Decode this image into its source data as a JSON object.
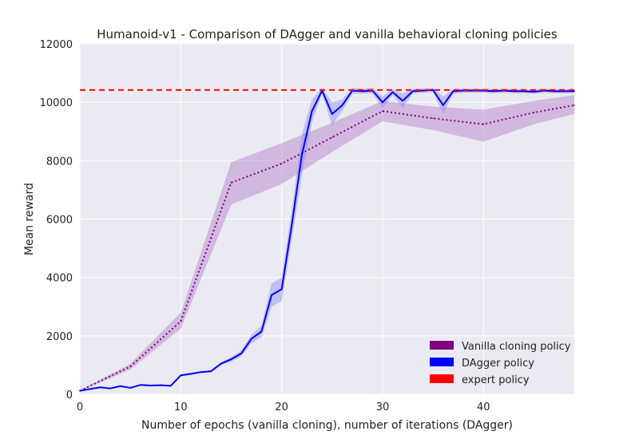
{
  "chart_data": {
    "type": "line",
    "title": "Humanoid-v1 - Comparison of DAgger and vanilla behavioral cloning policies",
    "xlabel": "Number of epochs (vanilla cloning), number of iterations (DAgger)",
    "ylabel": "Mean reward",
    "xlim": [
      0,
      49
    ],
    "ylim": [
      0,
      12000
    ],
    "xticks": [
      0,
      10,
      20,
      30,
      40
    ],
    "yticks": [
      0,
      2000,
      4000,
      6000,
      8000,
      10000,
      12000
    ],
    "grid": true,
    "legend_position": "lower-right",
    "series": [
      {
        "name": "Vanilla cloning policy",
        "color": "#800080",
        "line_style": "dotted",
        "x": [
          0,
          5,
          10,
          15,
          20,
          25,
          30,
          35,
          40,
          45,
          49
        ],
        "y": [
          120,
          950,
          2500,
          7250,
          7900,
          8800,
          9700,
          9450,
          9250,
          9650,
          9900
        ],
        "y_low": [
          100,
          850,
          2250,
          6500,
          7200,
          8300,
          9350,
          9050,
          8650,
          9250,
          9600
        ],
        "y_high": [
          140,
          1050,
          2800,
          7950,
          8600,
          9300,
          10050,
          9850,
          9750,
          10050,
          10250
        ]
      },
      {
        "name": "DAgger policy",
        "color": "#0000ff",
        "line_style": "solid",
        "x": [
          0,
          1,
          2,
          3,
          4,
          5,
          6,
          7,
          8,
          9,
          10,
          11,
          12,
          13,
          14,
          15,
          16,
          17,
          18,
          19,
          20,
          21,
          22,
          23,
          24,
          25,
          26,
          27,
          28,
          29,
          30,
          31,
          32,
          33,
          34,
          35,
          36,
          37,
          38,
          39,
          40,
          41,
          42,
          43,
          44,
          45,
          46,
          47,
          48,
          49
        ],
        "y": [
          120,
          180,
          240,
          200,
          280,
          220,
          320,
          300,
          310,
          290,
          650,
          700,
          760,
          790,
          1050,
          1200,
          1400,
          1900,
          2150,
          3400,
          3600,
          5800,
          8200,
          9700,
          10400,
          9600,
          9900,
          10400,
          10380,
          10400,
          10000,
          10350,
          10050,
          10380,
          10400,
          10420,
          9900,
          10380,
          10400,
          10400,
          10400,
          10380,
          10400,
          10380,
          10380,
          10360,
          10400,
          10380,
          10380,
          10380
        ],
        "y_low": [
          110,
          170,
          230,
          190,
          270,
          210,
          310,
          290,
          300,
          280,
          620,
          670,
          730,
          760,
          1000,
          1120,
          1300,
          1750,
          1950,
          3000,
          3200,
          5300,
          7500,
          9300,
          10300,
          9200,
          9700,
          10300,
          10300,
          10300,
          9800,
          10250,
          9800,
          10300,
          10330,
          10350,
          9600,
          10300,
          10330,
          10330,
          10330,
          10310,
          10330,
          10310,
          10310,
          10290,
          10330,
          10310,
          10310,
          10310
        ],
        "y_high": [
          130,
          190,
          250,
          210,
          290,
          230,
          330,
          310,
          320,
          300,
          680,
          730,
          790,
          820,
          1100,
          1280,
          1500,
          2050,
          2350,
          3800,
          4000,
          6300,
          8900,
          10100,
          10500,
          10000,
          10100,
          10500,
          10460,
          10500,
          10200,
          10450,
          10300,
          10460,
          10470,
          10490,
          10200,
          10460,
          10470,
          10470,
          10470,
          10450,
          10470,
          10450,
          10450,
          10430,
          10470,
          10450,
          10450,
          10450
        ]
      },
      {
        "name": "expert policy",
        "color": "#ff0000",
        "line_style": "dashed",
        "y_constant": 10420
      }
    ]
  },
  "style": {
    "plot_background": "#eaeaf2",
    "grid_color": "#ffffff",
    "text_color": "#222222",
    "vanilla_band_color": "#b47cc8",
    "dagger_band_color": "#8c8cf0"
  }
}
